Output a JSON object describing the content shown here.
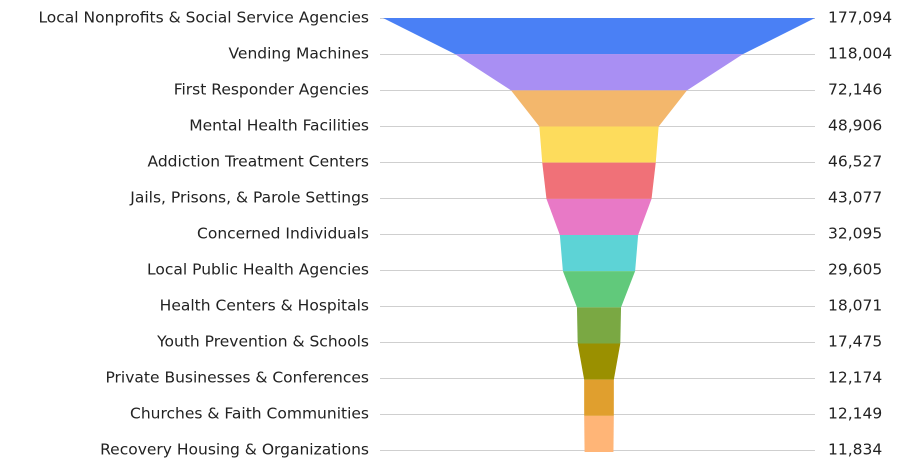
{
  "chart_data": {
    "type": "funnel",
    "categories": [
      "Local Nonprofits & Social Service Agencies",
      "Vending Machines",
      "First Responder Agencies",
      "Mental Health Facilities",
      "Addiction Treatment Centers",
      "Jails, Prisons, & Parole Settings",
      "Concerned Individuals",
      "Local Public Health Agencies",
      "Health Centers & Hospitals",
      "Youth Prevention & Schools",
      "Private Businesses & Conferences",
      "Churches & Faith Communities",
      "Recovery Housing & Organizations"
    ],
    "values": [
      177094,
      118004,
      72146,
      48906,
      46527,
      43077,
      32095,
      29605,
      18071,
      17475,
      12174,
      12149,
      11834
    ],
    "value_labels": [
      "177,094",
      "118,004",
      "72,146",
      "48,906",
      "46,527",
      "43,077",
      "32,095",
      "29,605",
      "18,071",
      "17,475",
      "12,174",
      "12,149",
      "11,834"
    ],
    "colors": [
      "#4a80f5",
      "#a98ff3",
      "#f3b76c",
      "#fddc5c",
      "#f07178",
      "#e879c6",
      "#5dd3d6",
      "#61c97b",
      "#7aa843",
      "#9a9000",
      "#e09f2e",
      "#ffb577"
    ]
  }
}
